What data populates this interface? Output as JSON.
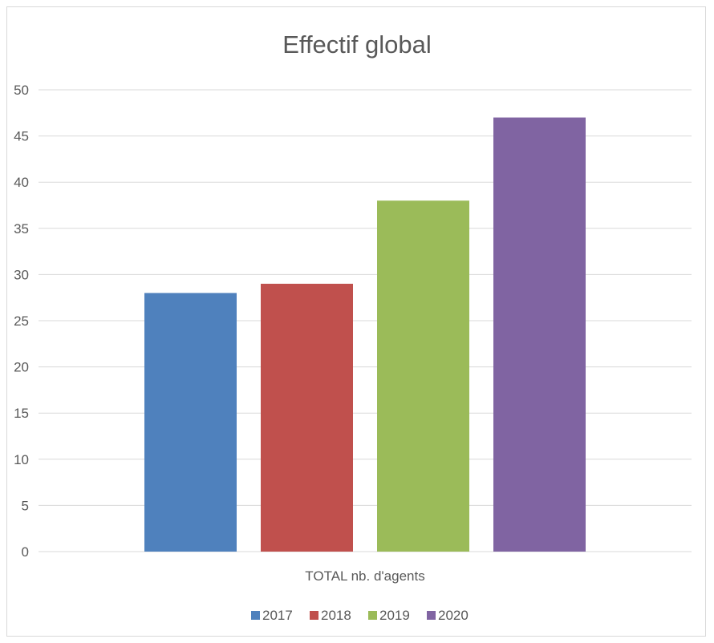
{
  "chart_data": {
    "type": "bar",
    "title": "Effectif global",
    "categories": [
      "TOTAL nb. d'agents"
    ],
    "series": [
      {
        "name": "2017",
        "values": [
          28
        ],
        "color": "#4f81bd"
      },
      {
        "name": "2018",
        "values": [
          29
        ],
        "color": "#c0504d"
      },
      {
        "name": "2019",
        "values": [
          38
        ],
        "color": "#9bbb59"
      },
      {
        "name": "2020",
        "values": [
          47
        ],
        "color": "#8064a2"
      }
    ],
    "ylim": [
      0,
      50
    ],
    "yticks": [
      0,
      5,
      10,
      15,
      20,
      25,
      30,
      35,
      40,
      45,
      50
    ],
    "grid": true,
    "legend": "bottom",
    "gridline_color": "#d9d9d9"
  }
}
